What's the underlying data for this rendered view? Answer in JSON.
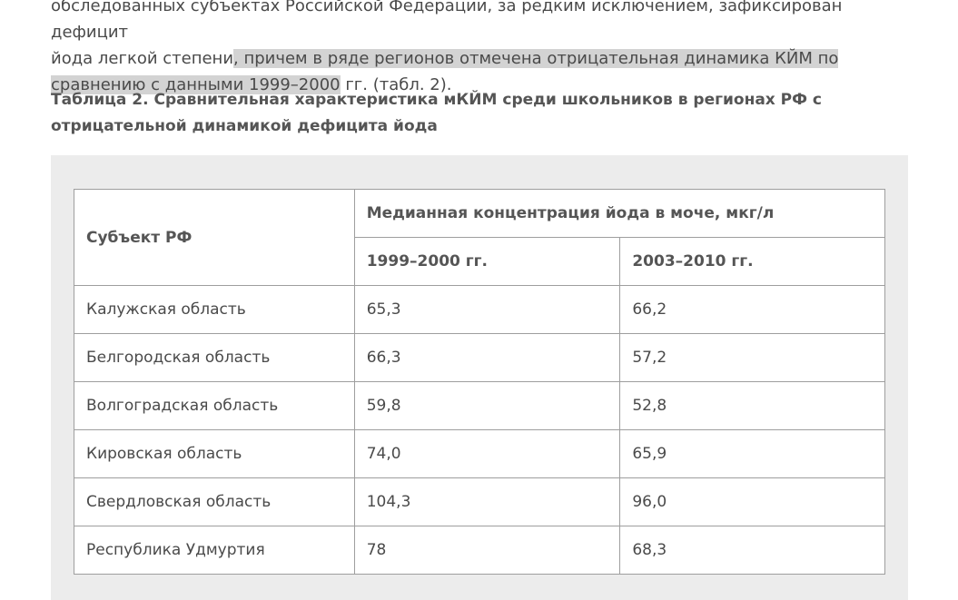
{
  "article": {
    "line1": "обследованных субъектах Российской Федерации, за редким исключением, зафиксирован дефицит",
    "line2_plain": "йода легкой степени",
    "line2_highlight": ", причем в ряде регионов отмечена отрицательная динамика КЙМ по",
    "line3_highlight": "сравнению с данными 1999–2000",
    "line3_tail": " гг. (табл. 2)."
  },
  "caption": "Таблица 2. Сравнительная характеристика мКЙМ среди школьников в регионах РФ с отрицательной динамикой дефицита йода",
  "table": {
    "col_region": "Субъект РФ",
    "col_group": "Медианная концентрация йода в моче, мкг/л",
    "col_period1": "1999–2000 гг.",
    "col_period2": "2003–2010 гг.",
    "rows": [
      {
        "region": "Калужская область",
        "v1": "65,3",
        "v2": "66,2"
      },
      {
        "region": "Белгородская область",
        "v1": "66,3",
        "v2": "57,2"
      },
      {
        "region": "Волгоградская область",
        "v1": "59,8",
        "v2": "52,8"
      },
      {
        "region": "Кировская область",
        "v1": "74,0",
        "v2": "65,9"
      },
      {
        "region": "Свердловская область",
        "v1": "104,3",
        "v2": "96,0"
      },
      {
        "region": "Республика Удмуртия",
        "v1": "78",
        "v2": "68,3"
      }
    ]
  },
  "colors": {
    "highlight": "#d3d3d3",
    "panel": "#ececec",
    "border": "#9e9e9e",
    "text": "#4a4a4a"
  }
}
